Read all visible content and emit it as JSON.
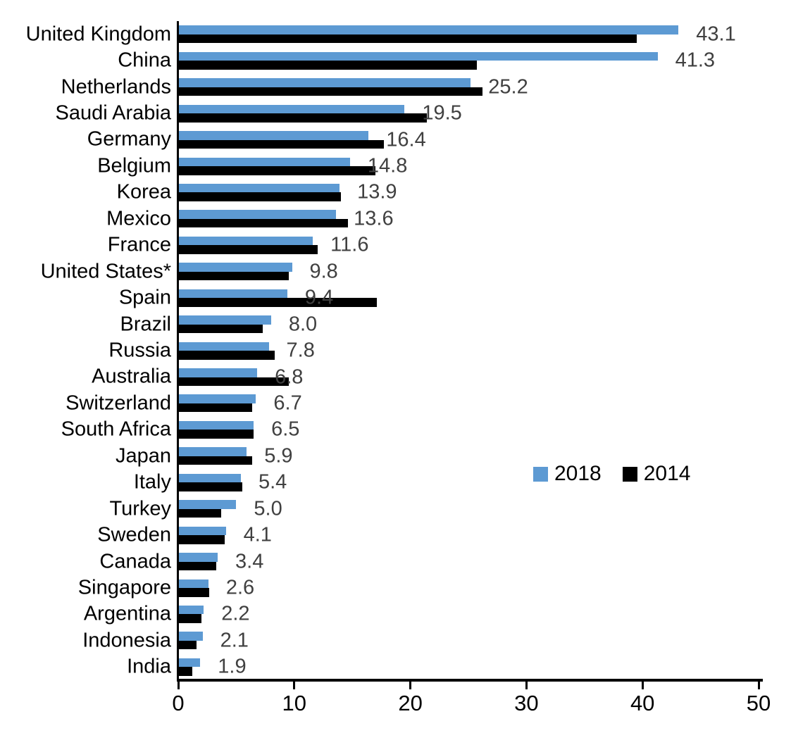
{
  "chart_data": {
    "type": "bar",
    "orientation": "horizontal",
    "title": "",
    "xlabel": "",
    "ylabel": "",
    "xlim": [
      0,
      50
    ],
    "x_ticks": [
      "0",
      "10",
      "20",
      "30",
      "40",
      "50"
    ],
    "grid": false,
    "legend_position": "middle-right",
    "categories": [
      "United Kingdom",
      "China",
      "Netherlands",
      "Saudi Arabia",
      "Germany",
      "Belgium",
      "Korea",
      "Mexico",
      "France",
      "United States*",
      "Spain",
      "Brazil",
      "Russia",
      "Australia",
      "Switzerland",
      "South Africa",
      "Japan",
      "Italy",
      "Turkey",
      "Sweden",
      "Canada",
      "Singapore",
      "Argentina",
      "Indonesia",
      "India"
    ],
    "series": [
      {
        "name": "2018",
        "color": "#5d9ad3",
        "values": [
          43.1,
          41.3,
          25.2,
          19.5,
          16.4,
          14.8,
          13.9,
          13.6,
          11.6,
          9.8,
          9.4,
          8.0,
          7.8,
          6.8,
          6.7,
          6.5,
          5.9,
          5.4,
          5.0,
          4.1,
          3.4,
          2.6,
          2.2,
          2.1,
          1.9
        ]
      },
      {
        "name": "2014",
        "color": "#000000",
        "values": [
          39.5,
          25.7,
          26.2,
          21.4,
          17.7,
          17.0,
          14.0,
          14.6,
          12.0,
          9.5,
          17.1,
          7.3,
          8.3,
          9.5,
          6.4,
          6.5,
          6.4,
          5.5,
          3.7,
          4.0,
          3.3,
          2.7,
          2.0,
          1.6,
          1.2
        ]
      }
    ],
    "data_labels": {
      "series": "2018",
      "values": [
        "43.1",
        "41.3",
        "25.2",
        "19.5",
        "16.4",
        "14.8",
        "13.9",
        "13.6",
        "11.6",
        "9.8",
        "9.4",
        "8.0",
        "7.8",
        "6.8",
        "6.7",
        "6.5",
        "5.9",
        "5.4",
        "5.0",
        "4.1",
        "3.4",
        "2.6",
        "2.2",
        "2.1",
        "1.9"
      ],
      "color": "#404040"
    },
    "legend": {
      "entries": [
        {
          "label": "2018",
          "color": "#5d9ad3"
        },
        {
          "label": "2014",
          "color": "#000000"
        }
      ]
    }
  }
}
